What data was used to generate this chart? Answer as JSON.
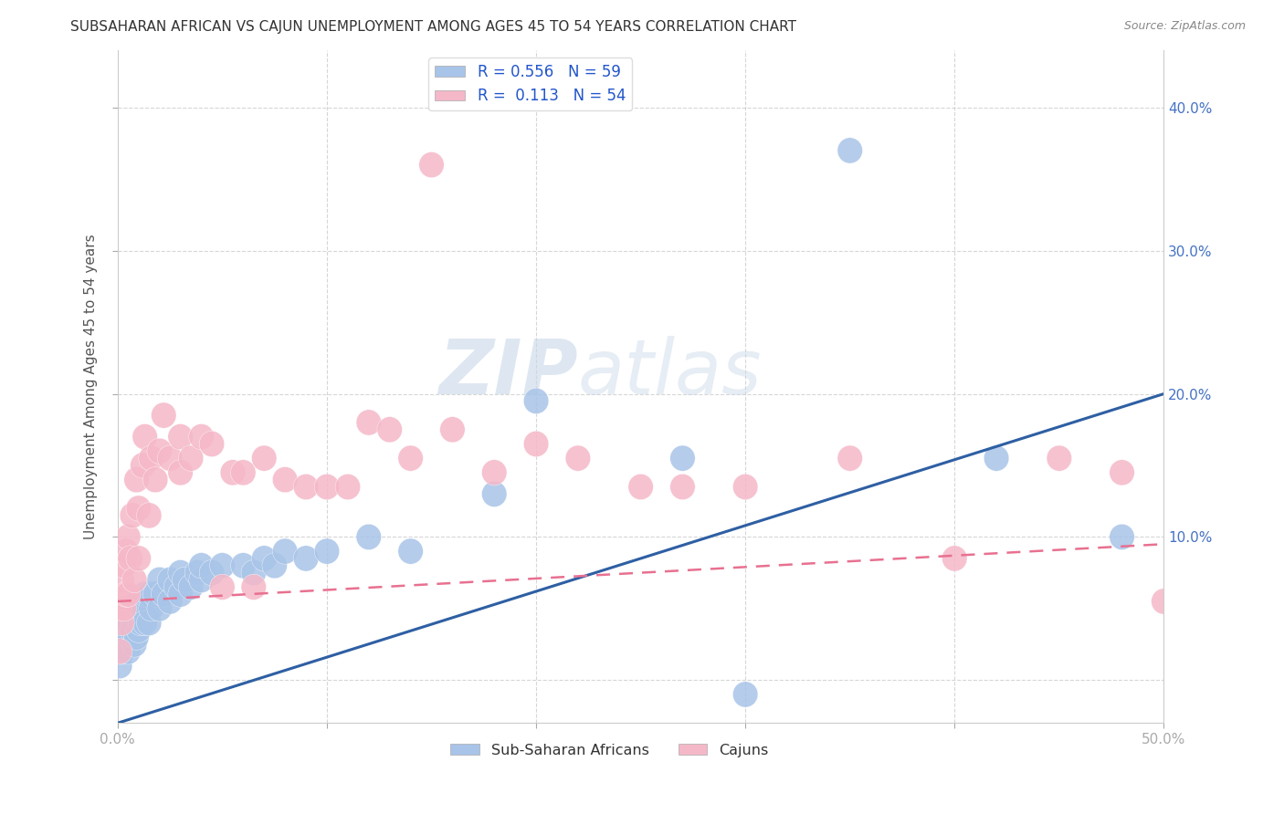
{
  "title": "SUBSAHARAN AFRICAN VS CAJUN UNEMPLOYMENT AMONG AGES 45 TO 54 YEARS CORRELATION CHART",
  "source": "Source: ZipAtlas.com",
  "ylabel": "Unemployment Among Ages 45 to 54 years",
  "xlabel": "",
  "xlim": [
    0.0,
    0.5
  ],
  "ylim": [
    -0.03,
    0.44
  ],
  "xticks": [
    0.0,
    0.1,
    0.2,
    0.3,
    0.4,
    0.5
  ],
  "yticks": [
    0.0,
    0.1,
    0.2,
    0.3,
    0.4
  ],
  "xticklabels": [
    "0.0%",
    "",
    "",
    "",
    "",
    "50.0%"
  ],
  "yticklabels_right": [
    "",
    "10.0%",
    "20.0%",
    "30.0%",
    "40.0%"
  ],
  "blue_R": 0.556,
  "blue_N": 59,
  "pink_R": 0.113,
  "pink_N": 54,
  "blue_color": "#a8c4e8",
  "pink_color": "#f5b8c8",
  "blue_line_color": "#2e5fa3",
  "pink_line_color": "#e87090",
  "watermark_zip": "ZIP",
  "watermark_atlas": "atlas",
  "blue_line_slope": 0.46,
  "blue_line_intercept": -0.03,
  "pink_line_slope": 0.08,
  "pink_line_intercept": 0.055,
  "blue_scatter_x": [
    0.001,
    0.002,
    0.002,
    0.003,
    0.003,
    0.003,
    0.004,
    0.004,
    0.005,
    0.005,
    0.006,
    0.006,
    0.007,
    0.007,
    0.008,
    0.008,
    0.009,
    0.009,
    0.01,
    0.01,
    0.011,
    0.012,
    0.013,
    0.013,
    0.015,
    0.015,
    0.016,
    0.018,
    0.02,
    0.02,
    0.022,
    0.025,
    0.025,
    0.028,
    0.03,
    0.03,
    0.032,
    0.035,
    0.038,
    0.04,
    0.04,
    0.045,
    0.05,
    0.06,
    0.065,
    0.07,
    0.075,
    0.08,
    0.09,
    0.1,
    0.12,
    0.14,
    0.18,
    0.2,
    0.27,
    0.3,
    0.35,
    0.42,
    0.48
  ],
  "blue_scatter_y": [
    0.01,
    0.02,
    0.03,
    0.025,
    0.035,
    0.04,
    0.03,
    0.05,
    0.02,
    0.04,
    0.03,
    0.05,
    0.035,
    0.045,
    0.025,
    0.04,
    0.03,
    0.05,
    0.035,
    0.055,
    0.04,
    0.05,
    0.04,
    0.06,
    0.04,
    0.06,
    0.05,
    0.06,
    0.05,
    0.07,
    0.06,
    0.055,
    0.07,
    0.065,
    0.06,
    0.075,
    0.07,
    0.065,
    0.075,
    0.07,
    0.08,
    0.075,
    0.08,
    0.08,
    0.075,
    0.085,
    0.08,
    0.09,
    0.085,
    0.09,
    0.1,
    0.09,
    0.13,
    0.195,
    0.155,
    -0.01,
    0.37,
    0.155,
    0.1
  ],
  "pink_scatter_x": [
    0.001,
    0.001,
    0.002,
    0.002,
    0.003,
    0.003,
    0.004,
    0.004,
    0.005,
    0.005,
    0.006,
    0.007,
    0.008,
    0.009,
    0.01,
    0.01,
    0.012,
    0.013,
    0.015,
    0.016,
    0.018,
    0.02,
    0.022,
    0.025,
    0.03,
    0.03,
    0.035,
    0.04,
    0.045,
    0.05,
    0.055,
    0.06,
    0.065,
    0.07,
    0.08,
    0.09,
    0.1,
    0.11,
    0.12,
    0.13,
    0.14,
    0.15,
    0.16,
    0.18,
    0.2,
    0.22,
    0.25,
    0.27,
    0.3,
    0.35,
    0.4,
    0.45,
    0.48,
    0.5
  ],
  "pink_scatter_y": [
    0.02,
    0.05,
    0.04,
    0.07,
    0.05,
    0.08,
    0.06,
    0.09,
    0.06,
    0.1,
    0.085,
    0.115,
    0.07,
    0.14,
    0.085,
    0.12,
    0.15,
    0.17,
    0.115,
    0.155,
    0.14,
    0.16,
    0.185,
    0.155,
    0.145,
    0.17,
    0.155,
    0.17,
    0.165,
    0.065,
    0.145,
    0.145,
    0.065,
    0.155,
    0.14,
    0.135,
    0.135,
    0.135,
    0.18,
    0.175,
    0.155,
    0.36,
    0.175,
    0.145,
    0.165,
    0.155,
    0.135,
    0.135,
    0.135,
    0.155,
    0.085,
    0.155,
    0.145,
    0.055
  ]
}
